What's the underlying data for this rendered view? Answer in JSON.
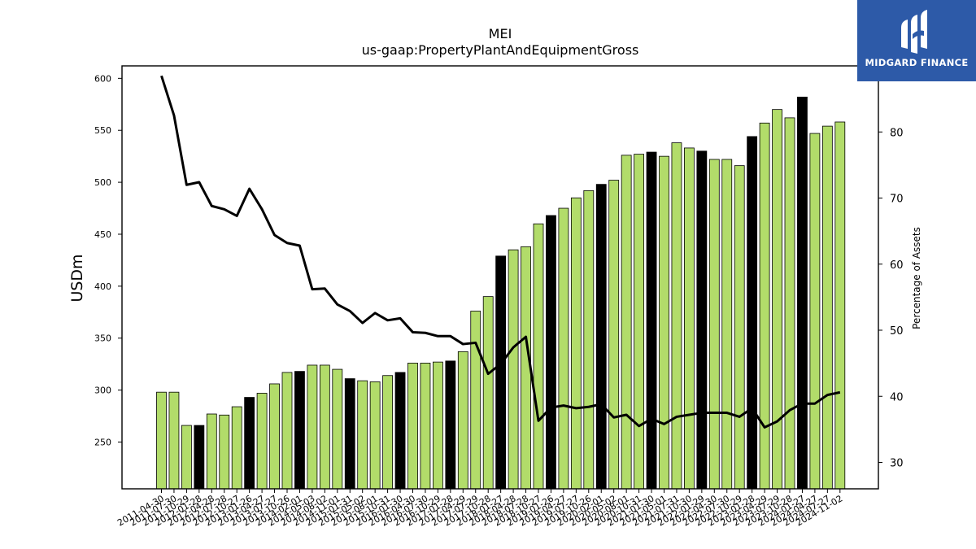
{
  "header": {
    "title": "MEI",
    "subtitle": "us-gaap:PropertyPlantAndEquipmentGross"
  },
  "brand": {
    "name": "MIDGARD FINANCE",
    "color": "#2d5aa8"
  },
  "chart_data": {
    "type": "bar",
    "xlabel": "",
    "ylabel": "USDm",
    "y2label": "Percentage of Assets",
    "ylim": [
      205,
      612
    ],
    "y2lim": [
      26,
      90
    ],
    "yticks": [
      250,
      300,
      350,
      400,
      450,
      500,
      550,
      600
    ],
    "y2ticks": [
      30,
      40,
      50,
      60,
      70,
      80
    ],
    "categories": [
      "2011-04-30",
      "2011-07-30",
      "2011-10-29",
      "2012-01-28",
      "2012-04-28",
      "2012-07-28",
      "2012-10-27",
      "2013-01-26",
      "2013-04-27",
      "2013-07-27",
      "2013-10-26",
      "2014-02-01",
      "2014-05-03",
      "2014-08-02",
      "2014-11-01",
      "2015-01-31",
      "2015-05-02",
      "2015-08-01",
      "2015-10-31",
      "2016-01-30",
      "2016-04-30",
      "2016-07-30",
      "2016-10-29",
      "2017-01-28",
      "2017-04-29",
      "2017-07-29",
      "2017-10-28",
      "2018-01-27",
      "2018-04-28",
      "2018-07-28",
      "2018-10-27",
      "2019-01-26",
      "2019-04-27",
      "2019-07-27",
      "2019-10-26",
      "2020-02-01",
      "2020-05-02",
      "2020-08-01",
      "2020-10-31",
      "2021-01-30",
      "2021-05-01",
      "2021-07-31",
      "2021-10-30",
      "2022-01-29",
      "2022-04-30",
      "2022-07-30",
      "2022-10-29",
      "2023-01-28",
      "2023-04-29",
      "2023-07-29",
      "2023-10-28",
      "2024-01-27",
      "2024-04-27",
      "2024-07-27",
      "2024-11-02"
    ],
    "xtick_labels": [
      "2011-04-30",
      "2011-07-30",
      "2011-10-29",
      "2012-01-28",
      "2012-04-28",
      "2012-07-28",
      "2012-10-27",
      "2013-01-26",
      "2013-04-27",
      "2013-07-27",
      "2013-10-26",
      "2014-02-01",
      "2014-05-03",
      "2014-08-02",
      "2014-11-01",
      "2015-01-31",
      "2015-05-02",
      "2015-08-01",
      "2015-10-31",
      "2016-01-30",
      "2016-04-30",
      "2016-07-30",
      "2016-10-29",
      "2017-01-28",
      "2017-04-29",
      "2017-07-29",
      "2017-10-28",
      "2018-01-27",
      "2018-04-28",
      "2018-07-28",
      "2018-10-27",
      "2019-01-26",
      "2019-04-27",
      "2019-07-27",
      "2019-10-26",
      "2020-02-01",
      "2020-05-02",
      "2020-08-01",
      "2020-10-31",
      "2021-01-30",
      "2021-05-01",
      "2021-07-31",
      "2021-10-30",
      "2022-01-29",
      "2022-04-30",
      "2022-07-30",
      "2022-10-29",
      "2023-01-28",
      "2023-04-29",
      "2023-07-29",
      "2023-10-28",
      "2024-01-27",
      "2024-04-27",
      "2024-07-27",
      "2024-11-02"
    ],
    "series": [
      {
        "axis": "left",
        "kind": "bar",
        "values": [
          298,
          298,
          266,
          266,
          277,
          276,
          284,
          293,
          297,
          306,
          317,
          318,
          324,
          324,
          320,
          311,
          309,
          308,
          314,
          317,
          326,
          326,
          327,
          328,
          337,
          376,
          390,
          429,
          435,
          438,
          460,
          468,
          475,
          485,
          492,
          498,
          502,
          526,
          527,
          529,
          525,
          538,
          533,
          530,
          522,
          522,
          516,
          544,
          557,
          570,
          562,
          582,
          547,
          554,
          558
        ],
        "highlight": [
          false,
          false,
          false,
          true,
          false,
          false,
          false,
          true,
          false,
          false,
          false,
          true,
          false,
          false,
          false,
          true,
          false,
          false,
          false,
          true,
          false,
          false,
          false,
          true,
          false,
          false,
          false,
          true,
          false,
          false,
          false,
          true,
          false,
          false,
          false,
          true,
          false,
          false,
          false,
          true,
          false,
          false,
          false,
          true,
          false,
          false,
          false,
          true,
          false,
          false,
          false,
          true,
          false,
          false,
          false
        ],
        "color": "#b2dc6a",
        "highlight_color": "#000000"
      },
      {
        "axis": "right",
        "kind": "line",
        "values": [
          88.5,
          82.5,
          72.0,
          72.4,
          68.8,
          68.3,
          67.3,
          71.4,
          68.3,
          64.4,
          63.2,
          62.8,
          56.2,
          56.3,
          53.9,
          52.9,
          51.1,
          52.6,
          51.5,
          51.8,
          49.7,
          49.6,
          49.1,
          49.1,
          47.9,
          48.1,
          43.4,
          44.9,
          47.4,
          49.0,
          36.3,
          38.3,
          38.6,
          38.2,
          38.4,
          38.8,
          36.8,
          37.2,
          35.5,
          36.6,
          35.8,
          36.9,
          37.2,
          37.5,
          37.5,
          37.5,
          36.9,
          38.2,
          35.3,
          36.2,
          37.9,
          38.9,
          38.9,
          40.2,
          40.6
        ],
        "color": "#000000"
      }
    ],
    "grid": false,
    "legend": "none"
  }
}
